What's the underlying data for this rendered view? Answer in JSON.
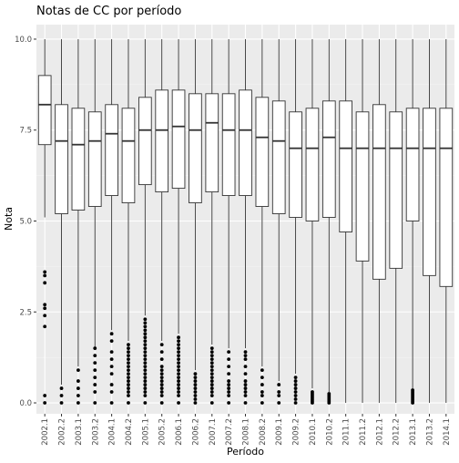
{
  "chart_data": {
    "type": "boxplot",
    "title": "Notas de CC por período",
    "xlabel": "Período",
    "ylabel": "Nota",
    "ylim": [
      -0.3,
      10.4
    ],
    "yticks": [
      0.0,
      2.5,
      5.0,
      7.5,
      10.0
    ],
    "ytick_labels": [
      "0.0",
      "2.5",
      "5.0",
      "7.5",
      "10.0"
    ],
    "grid": true,
    "legend": "none",
    "colors": {
      "panel": "#ebebeb",
      "grid_major": "#ffffff",
      "box_fill": "#ffffff",
      "box_line": "#333333",
      "outlier": "#000000",
      "text": "#4d4d4d",
      "title": "#000000"
    },
    "categories": [
      "2002.1",
      "2002.2",
      "2003.1",
      "2003.2",
      "2004.1",
      "2004.2",
      "2005.1",
      "2005.2",
      "2006.1",
      "2006.2",
      "2007.1",
      "2007.2",
      "2008.1",
      "2008.2",
      "2009.1",
      "2009.2",
      "2010.1",
      "2010.2",
      "2011.1",
      "2011.2",
      "2012.1",
      "2012.2",
      "2013.1",
      "2013.2",
      "2014.1"
    ],
    "boxes": [
      {
        "category": "2002.1",
        "whisker_low": 5.1,
        "q1": 7.1,
        "median": 8.2,
        "q3": 9.0,
        "whisker_high": 10.0,
        "outliers": [
          3.6,
          3.5,
          3.3,
          2.7,
          2.6,
          2.4,
          2.1,
          0.2,
          0.0
        ]
      },
      {
        "category": "2002.2",
        "whisker_low": 0.5,
        "q1": 5.2,
        "median": 7.2,
        "q3": 8.2,
        "whisker_high": 10.0,
        "outliers": [
          0.4,
          0.2,
          0.0
        ]
      },
      {
        "category": "2003.1",
        "whisker_low": 1.0,
        "q1": 5.3,
        "median": 7.1,
        "q3": 8.1,
        "whisker_high": 10.0,
        "outliers": [
          0.9,
          0.6,
          0.4,
          0.2,
          0.0
        ]
      },
      {
        "category": "2003.2",
        "whisker_low": 1.5,
        "q1": 5.4,
        "median": 7.2,
        "q3": 8.0,
        "whisker_high": 10.0,
        "outliers": [
          1.5,
          1.3,
          1.1,
          0.9,
          0.7,
          0.5,
          0.3,
          0.0
        ]
      },
      {
        "category": "2004.1",
        "whisker_low": 2.0,
        "q1": 5.7,
        "median": 7.4,
        "q3": 8.2,
        "whisker_high": 10.0,
        "outliers": [
          1.9,
          1.7,
          1.4,
          1.2,
          1.0,
          0.8,
          0.5,
          0.3,
          0.0
        ]
      },
      {
        "category": "2004.2",
        "whisker_low": 1.7,
        "q1": 5.5,
        "median": 7.2,
        "q3": 8.1,
        "whisker_high": 10.0,
        "outliers": [
          1.6,
          1.5,
          1.4,
          1.3,
          1.2,
          1.1,
          1.0,
          0.9,
          0.8,
          0.7,
          0.6,
          0.5,
          0.4,
          0.3,
          0.2,
          0.0
        ]
      },
      {
        "category": "2005.1",
        "whisker_low": 2.4,
        "q1": 6.0,
        "median": 7.5,
        "q3": 8.4,
        "whisker_high": 10.0,
        "outliers": [
          2.3,
          2.2,
          2.1,
          2.0,
          1.9,
          1.8,
          1.7,
          1.6,
          1.5,
          1.4,
          1.3,
          1.2,
          1.1,
          1.0,
          0.9,
          0.8,
          0.7,
          0.6,
          0.5,
          0.4,
          0.3,
          0.2,
          0.0
        ]
      },
      {
        "category": "2005.2",
        "whisker_low": 1.7,
        "q1": 5.8,
        "median": 7.5,
        "q3": 8.6,
        "whisker_high": 10.0,
        "outliers": [
          1.6,
          1.4,
          1.2,
          1.0,
          0.9,
          0.8,
          0.7,
          0.6,
          0.5,
          0.4,
          0.3,
          0.2,
          0.0
        ]
      },
      {
        "category": "2006.1",
        "whisker_low": 1.9,
        "q1": 5.9,
        "median": 7.6,
        "q3": 8.6,
        "whisker_high": 10.0,
        "outliers": [
          1.8,
          1.7,
          1.6,
          1.5,
          1.4,
          1.3,
          1.2,
          1.1,
          1.0,
          0.9,
          0.8,
          0.7,
          0.6,
          0.5,
          0.4,
          0.3,
          0.2,
          0.0
        ]
      },
      {
        "category": "2006.2",
        "whisker_low": 0.9,
        "q1": 5.5,
        "median": 7.5,
        "q3": 8.5,
        "whisker_high": 10.0,
        "outliers": [
          0.8,
          0.7,
          0.6,
          0.5,
          0.4,
          0.3,
          0.2,
          0.1,
          0.0
        ]
      },
      {
        "category": "2007.1",
        "whisker_low": 1.6,
        "q1": 5.8,
        "median": 7.7,
        "q3": 8.5,
        "whisker_high": 10.0,
        "outliers": [
          1.5,
          1.4,
          1.3,
          1.2,
          1.1,
          1.0,
          0.9,
          0.8,
          0.7,
          0.6,
          0.5,
          0.4,
          0.3,
          0.2,
          0.0
        ]
      },
      {
        "category": "2007.2",
        "whisker_low": 1.5,
        "q1": 5.7,
        "median": 7.5,
        "q3": 8.5,
        "whisker_high": 10.0,
        "outliers": [
          1.4,
          1.2,
          1.0,
          0.8,
          0.6,
          0.5,
          0.4,
          0.3,
          0.2,
          0.0
        ]
      },
      {
        "category": "2008.1",
        "whisker_low": 1.5,
        "q1": 5.7,
        "median": 7.5,
        "q3": 8.6,
        "whisker_high": 10.0,
        "outliers": [
          1.4,
          1.3,
          1.2,
          1.0,
          0.8,
          0.6,
          0.5,
          0.4,
          0.3,
          0.2,
          0.0
        ]
      },
      {
        "category": "2008.2",
        "whisker_low": 1.0,
        "q1": 5.4,
        "median": 7.3,
        "q3": 8.4,
        "whisker_high": 10.0,
        "outliers": [
          0.9,
          0.7,
          0.5,
          0.3,
          0.2,
          0.0
        ]
      },
      {
        "category": "2009.1",
        "whisker_low": 0.6,
        "q1": 5.2,
        "median": 7.2,
        "q3": 8.3,
        "whisker_high": 10.0,
        "outliers": [
          0.5,
          0.3,
          0.2,
          0.0
        ]
      },
      {
        "category": "2009.2",
        "whisker_low": 0.8,
        "q1": 5.1,
        "median": 7.0,
        "q3": 8.0,
        "whisker_high": 10.0,
        "outliers": [
          0.7,
          0.6,
          0.5,
          0.4,
          0.3,
          0.2,
          0.1,
          0.0
        ]
      },
      {
        "category": "2010.1",
        "whisker_low": 0.4,
        "q1": 5.0,
        "median": 7.0,
        "q3": 8.1,
        "whisker_high": 10.0,
        "outliers": [
          0.3,
          0.25,
          0.2,
          0.15,
          0.1,
          0.05,
          0.0
        ]
      },
      {
        "category": "2010.2",
        "whisker_low": 0.3,
        "q1": 5.1,
        "median": 7.3,
        "q3": 8.3,
        "whisker_high": 10.0,
        "outliers": [
          0.25,
          0.2,
          0.15,
          0.1,
          0.05,
          0.0
        ]
      },
      {
        "category": "2011.1",
        "whisker_low": 0.0,
        "q1": 4.7,
        "median": 7.0,
        "q3": 8.3,
        "whisker_high": 10.0,
        "outliers": []
      },
      {
        "category": "2011.2",
        "whisker_low": 0.0,
        "q1": 3.9,
        "median": 7.0,
        "q3": 8.0,
        "whisker_high": 10.0,
        "outliers": []
      },
      {
        "category": "2012.1",
        "whisker_low": 0.0,
        "q1": 3.4,
        "median": 7.0,
        "q3": 8.2,
        "whisker_high": 10.0,
        "outliers": []
      },
      {
        "category": "2012.2",
        "whisker_low": 0.0,
        "q1": 3.7,
        "median": 7.0,
        "q3": 8.0,
        "whisker_high": 10.0,
        "outliers": []
      },
      {
        "category": "2013.1",
        "whisker_low": 0.4,
        "q1": 5.0,
        "median": 7.0,
        "q3": 8.1,
        "whisker_high": 10.0,
        "outliers": [
          0.35,
          0.3,
          0.25,
          0.2,
          0.15,
          0.1,
          0.05,
          0.0
        ]
      },
      {
        "category": "2013.2",
        "whisker_low": 0.0,
        "q1": 3.5,
        "median": 7.0,
        "q3": 8.1,
        "whisker_high": 10.0,
        "outliers": []
      },
      {
        "category": "2014.1",
        "whisker_low": 0.0,
        "q1": 3.2,
        "median": 7.0,
        "q3": 8.1,
        "whisker_high": 10.0,
        "outliers": []
      }
    ]
  }
}
